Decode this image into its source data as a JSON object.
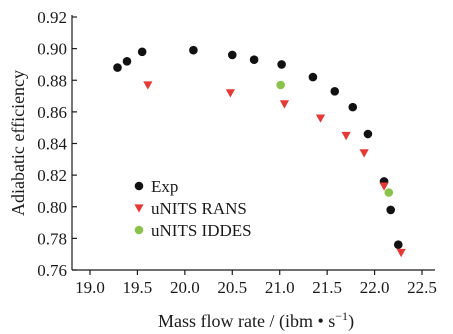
{
  "chart_data": {
    "type": "scatter",
    "xlabel": "Mass flow rate / (ibm • s",
    "xlabel_superscript": "−1",
    "xlabel_suffix": ")",
    "ylabel": "Adiabatic efficiency",
    "xlim": [
      19.0,
      22.5
    ],
    "ylim": [
      0.76,
      0.92
    ],
    "x_ticks": [
      "19.0",
      "19.5",
      "20.0",
      "20.5",
      "21.0",
      "21.5",
      "22.0",
      "22.5"
    ],
    "x_tick_values": [
      19.0,
      19.5,
      20.0,
      20.5,
      21.0,
      21.5,
      22.0,
      22.5
    ],
    "y_ticks": [
      "0.76",
      "0.78",
      "0.80",
      "0.82",
      "0.84",
      "0.86",
      "0.88",
      "0.90",
      "0.92"
    ],
    "y_tick_values": [
      0.76,
      0.78,
      0.8,
      0.82,
      0.84,
      0.86,
      0.88,
      0.9,
      0.92
    ],
    "grid": false,
    "legend_position": "bottom-left",
    "series": [
      {
        "name": "Exp",
        "marker": "circle",
        "color": "#111111",
        "x": [
          19.29,
          19.39,
          19.55,
          20.09,
          20.5,
          20.73,
          21.02,
          21.35,
          21.58,
          21.77,
          21.93,
          22.1,
          22.17,
          22.25
        ],
        "y": [
          0.888,
          0.892,
          0.898,
          0.899,
          0.896,
          0.893,
          0.89,
          0.882,
          0.873,
          0.863,
          0.846,
          0.816,
          0.798,
          0.776
        ]
      },
      {
        "name": "uNITS RANS",
        "marker": "triangle-down",
        "color": "#e53935",
        "x": [
          19.61,
          20.48,
          21.05,
          21.43,
          21.7,
          21.89,
          22.1,
          22.28
        ],
        "y": [
          0.877,
          0.872,
          0.865,
          0.856,
          0.845,
          0.834,
          0.813,
          0.771
        ]
      },
      {
        "name": "uNITS IDDES",
        "marker": "circle",
        "color": "#8bc34a",
        "x": [
          21.01,
          22.15
        ],
        "y": [
          0.877,
          0.809
        ]
      }
    ]
  }
}
